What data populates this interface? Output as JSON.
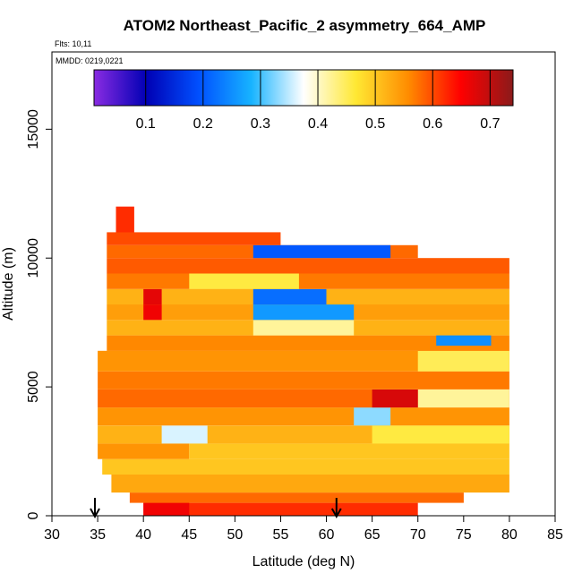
{
  "chart_data": {
    "type": "heatmap",
    "title": "ATOM2 Northeast_Pacific_2 asymmetry_664_AMP",
    "flights_label": "Flts: 10,11",
    "mmdd_label": "MMDD: 0219,0221",
    "xlabel": "Latitude (deg N)",
    "ylabel": "Altitude (m)",
    "xlim": [
      30,
      85
    ],
    "ylim": [
      0,
      18000
    ],
    "x_ticks": [
      "30",
      "35",
      "40",
      "45",
      "50",
      "55",
      "60",
      "65",
      "70",
      "75",
      "80",
      "85"
    ],
    "y_ticks": [
      "0",
      "5000",
      "10000",
      "15000"
    ],
    "colorbar": {
      "range": [
        0.01,
        0.74
      ],
      "ticks": [
        "0.1",
        "0.2",
        "0.3",
        "0.4",
        "0.5",
        "0.6",
        "0.7"
      ],
      "colors": [
        "#8a2be2",
        "#0000b4",
        "#0050ff",
        "#17b3ff",
        "#ffffff",
        "#ffe833",
        "#ff8c00",
        "#ff0000",
        "#8b1a1a"
      ]
    },
    "arrows": [
      34.7,
      61.1
    ],
    "cells": [
      {
        "lat": [
          40,
          70
        ],
        "alt": [
          0,
          500
        ],
        "value": 0.62
      },
      {
        "lat": [
          40,
          45
        ],
        "alt": [
          0,
          500
        ],
        "value": 0.66
      },
      {
        "lat": [
          38.5,
          75
        ],
        "alt": [
          500,
          900
        ],
        "value": 0.58
      },
      {
        "lat": [
          36.5,
          80
        ],
        "alt": [
          900,
          1600
        ],
        "value": 0.53
      },
      {
        "lat": [
          35.5,
          80
        ],
        "alt": [
          1600,
          2200
        ],
        "value": 0.5
      },
      {
        "lat": [
          35,
          45
        ],
        "alt": [
          2200,
          2800
        ],
        "value": 0.55
      },
      {
        "lat": [
          45,
          80
        ],
        "alt": [
          2200,
          2800
        ],
        "value": 0.5
      },
      {
        "lat": [
          35,
          80
        ],
        "alt": [
          2800,
          3500
        ],
        "value": 0.52
      },
      {
        "lat": [
          42,
          47
        ],
        "alt": [
          2800,
          3500
        ],
        "value": 0.36
      },
      {
        "lat": [
          65,
          80
        ],
        "alt": [
          2800,
          3500
        ],
        "value": 0.46
      },
      {
        "lat": [
          35,
          80
        ],
        "alt": [
          3500,
          4200
        ],
        "value": 0.55
      },
      {
        "lat": [
          63,
          67
        ],
        "alt": [
          3500,
          4200
        ],
        "value": 0.33
      },
      {
        "lat": [
          35,
          80
        ],
        "alt": [
          4200,
          4900
        ],
        "value": 0.58
      },
      {
        "lat": [
          70,
          80
        ],
        "alt": [
          4200,
          4900
        ],
        "value": 0.42
      },
      {
        "lat": [
          65,
          70
        ],
        "alt": [
          4200,
          4900
        ],
        "value": 0.68
      },
      {
        "lat": [
          35,
          80
        ],
        "alt": [
          4900,
          5600
        ],
        "value": 0.57
      },
      {
        "lat": [
          35,
          80
        ],
        "alt": [
          5600,
          6400
        ],
        "value": 0.55
      },
      {
        "lat": [
          70,
          80
        ],
        "alt": [
          5600,
          6400
        ],
        "value": 0.45
      },
      {
        "lat": [
          36,
          80
        ],
        "alt": [
          6400,
          7000
        ],
        "value": 0.56
      },
      {
        "lat": [
          36,
          80
        ],
        "alt": [
          7000,
          7600
        ],
        "value": 0.52
      },
      {
        "lat": [
          52,
          63
        ],
        "alt": [
          7000,
          7600
        ],
        "value": 0.42
      },
      {
        "lat": [
          72,
          78
        ],
        "alt": [
          6600,
          7000
        ],
        "value": 0.25
      },
      {
        "lat": [
          36,
          80
        ],
        "alt": [
          7600,
          8200
        ],
        "value": 0.54
      },
      {
        "lat": [
          52,
          63
        ],
        "alt": [
          7600,
          8200
        ],
        "value": 0.26
      },
      {
        "lat": [
          40,
          42
        ],
        "alt": [
          7600,
          8200
        ],
        "value": 0.66
      },
      {
        "lat": [
          36,
          80
        ],
        "alt": [
          8200,
          8800
        ],
        "value": 0.52
      },
      {
        "lat": [
          52,
          60
        ],
        "alt": [
          8200,
          8800
        ],
        "value": 0.22
      },
      {
        "lat": [
          40,
          42
        ],
        "alt": [
          8200,
          8800
        ],
        "value": 0.67
      },
      {
        "lat": [
          36,
          80
        ],
        "alt": [
          8800,
          9400
        ],
        "value": 0.57
      },
      {
        "lat": [
          45,
          57
        ],
        "alt": [
          8800,
          9400
        ],
        "value": 0.46
      },
      {
        "lat": [
          36,
          80
        ],
        "alt": [
          9400,
          10000
        ],
        "value": 0.59
      },
      {
        "lat": [
          36,
          70
        ],
        "alt": [
          10000,
          10500
        ],
        "value": 0.58
      },
      {
        "lat": [
          52,
          67
        ],
        "alt": [
          10000,
          10500
        ],
        "value": 0.2
      },
      {
        "lat": [
          36,
          55
        ],
        "alt": [
          10500,
          11000
        ],
        "value": 0.6
      },
      {
        "lat": [
          37,
          39
        ],
        "alt": [
          11000,
          12000
        ],
        "value": 0.62
      }
    ]
  }
}
